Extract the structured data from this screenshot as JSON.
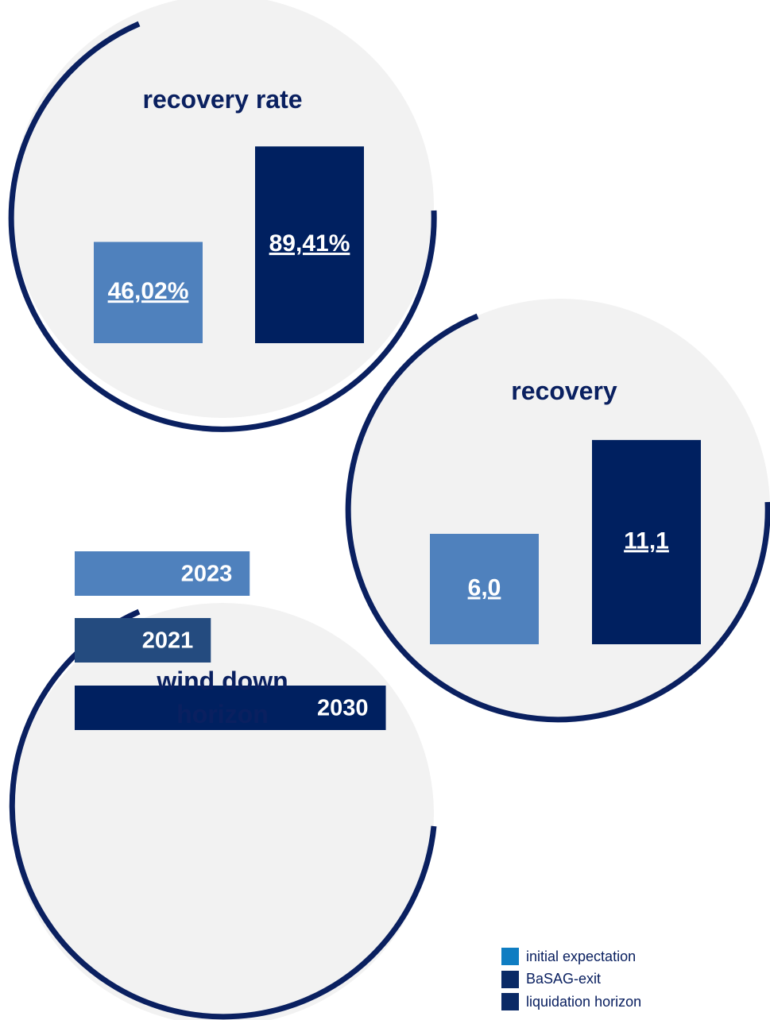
{
  "chart_data": [
    {
      "type": "bar",
      "title": "recovery rate",
      "values": [
        46.02,
        89.41
      ],
      "value_labels": [
        "46,02%",
        "89,41%"
      ],
      "colors": [
        "#4f81bd",
        "#002060"
      ],
      "ylim": [
        0,
        100
      ]
    },
    {
      "type": "bar",
      "title": "recovery",
      "values": [
        6.0,
        11.1
      ],
      "value_labels": [
        "6,0",
        "11,1"
      ],
      "colors": [
        "#4f81bd",
        "#002060"
      ],
      "ylim": [
        0,
        12
      ]
    },
    {
      "type": "hbar",
      "title": "wind down horizon",
      "values": [
        2023,
        2021,
        2030
      ],
      "colors": [
        "#4f81bd",
        "#244b7f",
        "#002060"
      ],
      "xlim": [
        2014,
        2031
      ]
    }
  ],
  "legend": [
    {
      "label": "initial expectation",
      "color": "#0f7dc2"
    },
    {
      "label": "BaSAG-exit",
      "color": "#0a2a66"
    },
    {
      "label": "liquidation horizon",
      "color": "#0a2a66"
    }
  ]
}
